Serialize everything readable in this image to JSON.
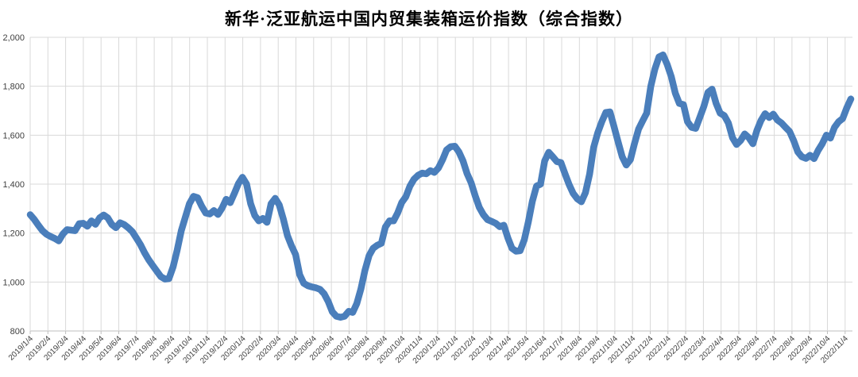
{
  "chart": {
    "title": "新华·泛亚航运中国内贸集装箱运价指数（综合指数）"
  },
  "chart_data": {
    "type": "line",
    "title": "新华·泛亚航运中国内贸集装箱运价指数（综合指数）",
    "xlabel": "",
    "ylabel": "",
    "ylim": [
      800,
      2000
    ],
    "y_step": 200,
    "y_tick_labels": [
      "800",
      "1,000",
      "1,200",
      "1,400",
      "1,600",
      "1,800",
      "2,000"
    ],
    "grid": true,
    "legend_position": "none",
    "line_color": "#4A7EBB",
    "grid_color": "#D9D9D9",
    "axis_color": "#BFBFBF",
    "label_color": "#595959",
    "x_labels": [
      "2019/1/4",
      "2019/2/4",
      "2019/3/4",
      "2019/4/4",
      "2019/5/4",
      "2019/6/4",
      "2019/7/4",
      "2019/8/4",
      "2019/9/4",
      "2019/10/4",
      "2019/11/4",
      "2019/12/4",
      "2020/1/4",
      "2020/2/4",
      "2020/3/4",
      "2020/4/4",
      "2020/5/4",
      "2020/6/4",
      "2020/7/4",
      "2020/8/4",
      "2020/9/4",
      "2020/10/4",
      "2020/11/4",
      "2020/12/4",
      "2021/1/4",
      "2021/2/4",
      "2021/3/4",
      "2021/4/4",
      "2021/5/4",
      "2021/6/4",
      "2021/7/4",
      "2021/8/4",
      "2021/9/4",
      "2021/10/4",
      "2021/11/4",
      "2021/12/4",
      "2022/1/4",
      "2022/2/4",
      "2022/3/4",
      "2022/4/4",
      "2022/5/4",
      "2022/6/4",
      "2022/7/4",
      "2022/8/4",
      "2022/9/4",
      "2022/10/4",
      "2022/11/4"
    ],
    "x_frequency_note": "weekly points, monthly tick labels",
    "values": [
      1275,
      1256,
      1232,
      1210,
      1195,
      1186,
      1178,
      1168,
      1196,
      1214,
      1212,
      1210,
      1238,
      1240,
      1228,
      1250,
      1236,
      1262,
      1274,
      1262,
      1235,
      1222,
      1242,
      1235,
      1222,
      1206,
      1180,
      1153,
      1120,
      1092,
      1068,
      1045,
      1022,
      1012,
      1014,
      1062,
      1130,
      1210,
      1265,
      1320,
      1350,
      1345,
      1310,
      1282,
      1278,
      1292,
      1276,
      1302,
      1338,
      1324,
      1362,
      1402,
      1428,
      1400,
      1320,
      1272,
      1250,
      1260,
      1244,
      1320,
      1342,
      1315,
      1258,
      1190,
      1148,
      1112,
      1030,
      995,
      985,
      980,
      976,
      970,
      952,
      920,
      878,
      860,
      856,
      860,
      880,
      876,
      912,
      972,
      1048,
      1108,
      1138,
      1150,
      1158,
      1225,
      1250,
      1250,
      1282,
      1325,
      1348,
      1392,
      1420,
      1436,
      1445,
      1442,
      1455,
      1448,
      1466,
      1500,
      1540,
      1553,
      1555,
      1532,
      1495,
      1443,
      1406,
      1352,
      1305,
      1275,
      1255,
      1248,
      1240,
      1226,
      1232,
      1180,
      1138,
      1126,
      1128,
      1172,
      1245,
      1330,
      1392,
      1400,
      1495,
      1530,
      1512,
      1492,
      1488,
      1442,
      1398,
      1362,
      1340,
      1328,
      1365,
      1440,
      1550,
      1610,
      1655,
      1693,
      1695,
      1635,
      1572,
      1512,
      1478,
      1500,
      1565,
      1625,
      1658,
      1690,
      1800,
      1870,
      1920,
      1928,
      1890,
      1840,
      1772,
      1730,
      1725,
      1655,
      1632,
      1628,
      1672,
      1718,
      1775,
      1788,
      1730,
      1690,
      1680,
      1650,
      1590,
      1562,
      1578,
      1605,
      1590,
      1565,
      1620,
      1660,
      1688,
      1672,
      1686,
      1662,
      1650,
      1632,
      1615,
      1578,
      1532,
      1512,
      1505,
      1518,
      1504,
      1538,
      1565,
      1600,
      1588,
      1632,
      1655,
      1668,
      1712,
      1748
    ]
  }
}
